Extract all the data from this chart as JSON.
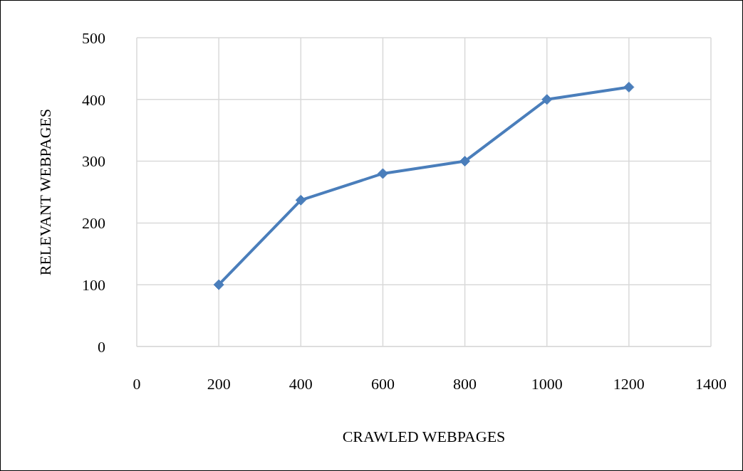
{
  "chart_data": {
    "type": "line",
    "xlabel": "CRAWLED WEBPAGES",
    "ylabel": "RELEVANT WEBPAGES",
    "x": [
      200,
      400,
      600,
      800,
      1000,
      1200
    ],
    "series": [
      {
        "color": "#4a7ebb",
        "values": [
          100,
          237,
          280,
          300,
          400,
          420
        ]
      }
    ],
    "xlim": [
      0,
      1400
    ],
    "xticks": [
      0,
      200,
      400,
      600,
      800,
      1000,
      1200,
      1400
    ],
    "ylim": [
      0,
      500
    ],
    "yticks": [
      0,
      100,
      200,
      300,
      400,
      500
    ],
    "grid": true,
    "marker": "diamond",
    "line_style": "solid"
  }
}
